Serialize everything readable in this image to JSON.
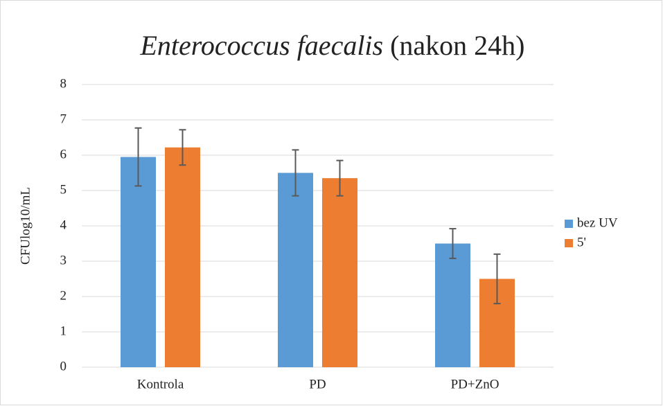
{
  "chart_data": {
    "type": "bar",
    "title": [
      "Enterococcus faecalis",
      "(nakon 24h)"
    ],
    "y_label": "CFUlog10/mL",
    "categories": [
      "Kontrola",
      "PD",
      "PD+ZnO"
    ],
    "series": [
      {
        "name": "bez UV",
        "color": "#5b9bd5",
        "values": [
          5.95,
          5.5,
          3.5
        ],
        "errors": [
          0.82,
          0.65,
          0.42
        ]
      },
      {
        "name": "5'",
        "color": "#ed7d31",
        "values": [
          6.22,
          5.35,
          2.5
        ],
        "errors": [
          0.5,
          0.5,
          0.7
        ]
      }
    ],
    "ylim": [
      0,
      8
    ],
    "yticks": [
      0,
      1,
      2,
      3,
      4,
      5,
      6,
      7,
      8
    ],
    "grid": true,
    "legend": "right"
  }
}
